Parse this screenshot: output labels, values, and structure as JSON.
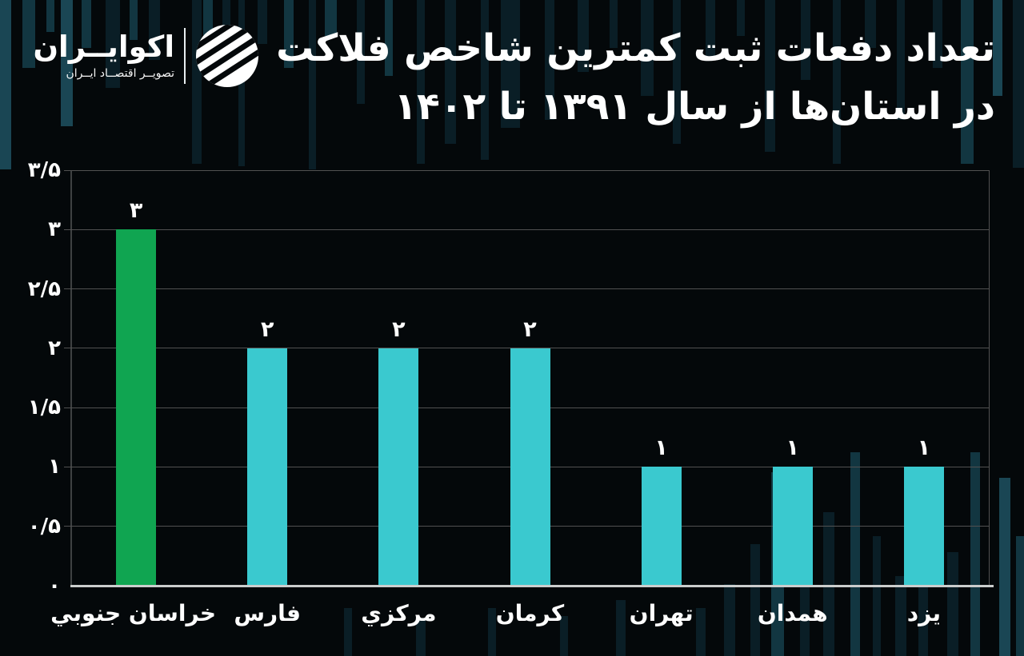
{
  "page": {
    "background": "#04080a"
  },
  "logo": {
    "brand": "اکوایــران",
    "tagline": "تصویــر اقتصــاد ایــران"
  },
  "title": {
    "line1": "تعداد دفعات ثبت کمترین شاخص فلاکت",
    "line2": "در استان‌ها از سال ۱۳۹۱ تا ۱۴۰۲"
  },
  "chart_data": {
    "type": "bar",
    "title": "تعداد دفعات ثبت کمترین شاخص فلاکت در استان‌ها از سال ۱۳۹۱ تا ۱۴۰۲",
    "categories": [
      "خراسان جنوبي",
      "فارس",
      "مرکزي",
      "کرمان",
      "تهران",
      "همدان",
      "یزد"
    ],
    "values": [
      3,
      2,
      2,
      2,
      1,
      1,
      1
    ],
    "value_labels": [
      "۳",
      "۲",
      "۲",
      "۲",
      "۱",
      "۱",
      "۱"
    ],
    "highlight_index": 0,
    "colors": {
      "highlight": "#10a551",
      "default": "#3ac9cf"
    },
    "y_ticks": [
      {
        "value": 3.5,
        "label": "۳/۵"
      },
      {
        "value": 3,
        "label": "۳"
      },
      {
        "value": 2.5,
        "label": "۲/۵"
      },
      {
        "value": 2,
        "label": "۲"
      },
      {
        "value": 1.5,
        "label": "۱/۵"
      },
      {
        "value": 1,
        "label": "۱"
      },
      {
        "value": 0.5,
        "label": "۰/۵"
      },
      {
        "value": 0,
        "label": "۰"
      }
    ],
    "ylim": [
      0,
      3.5
    ],
    "xlabel": "",
    "ylabel": "",
    "grid": true,
    "legend": false
  }
}
